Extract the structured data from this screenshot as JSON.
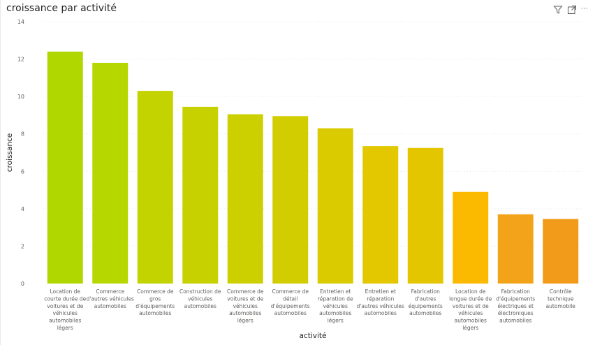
{
  "visual": {
    "title": "croissance par activité",
    "icons": [
      "filter-icon",
      "focus-mode-icon"
    ],
    "more_label": "⋯"
  },
  "chart_data": {
    "type": "bar",
    "title": "croissance par activité",
    "xlabel": "activité",
    "ylabel": "croissance",
    "ylim": [
      0,
      14
    ],
    "yticks": [
      0,
      2,
      4,
      6,
      8,
      10,
      12,
      14
    ],
    "grid": true,
    "categories": [
      [
        "Location de",
        "courte durée de",
        "voitures et de",
        "véhicules",
        "automobiles",
        "légers"
      ],
      [
        "Commerce",
        "d'autres véhicules",
        "automobiles"
      ],
      [
        "Commerce de",
        "gros",
        "d'équipements",
        "automobiles"
      ],
      [
        "Construction de",
        "véhicules",
        "automobiles"
      ],
      [
        "Commerce de",
        "voitures et de",
        "véhicules",
        "automobiles",
        "légers"
      ],
      [
        "Commerce de",
        "détail",
        "d'équipements",
        "automobiles"
      ],
      [
        "Entretien et",
        "réparation de",
        "véhicules",
        "automobiles",
        "légers"
      ],
      [
        "Entretien et",
        "réparation",
        "d'autres véhicules",
        "automobiles"
      ],
      [
        "Fabrication",
        "d'autres",
        "équipements",
        "automobiles"
      ],
      [
        "Location de",
        "longue durée de",
        "voitures et de",
        "véhicules",
        "automobiles",
        "légers"
      ],
      [
        "Fabrication",
        "d'équipements",
        "électriques et",
        "électroniques",
        "automobiles"
      ],
      [
        "Contrôle",
        "technique",
        "automobile"
      ]
    ],
    "values": [
      12.4,
      11.8,
      10.3,
      9.45,
      9.05,
      8.95,
      8.3,
      7.35,
      7.25,
      4.9,
      3.7,
      3.45
    ],
    "colors": [
      "#b0d800",
      "#b6d700",
      "#c3d300",
      "#c7d100",
      "#cdd000",
      "#d2cd00",
      "#d9cb00",
      "#e3c800",
      "#e3c600",
      "#fbba00",
      "#f3a31a",
      "#f29b1a"
    ]
  }
}
